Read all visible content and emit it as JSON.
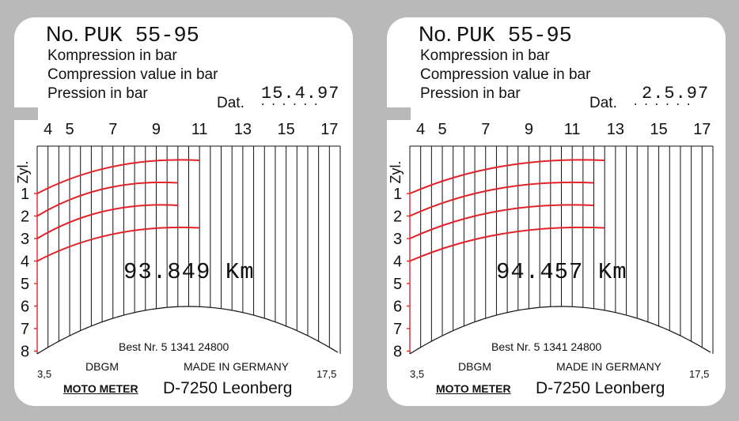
{
  "cards": [
    {
      "title_no": "No.",
      "title_code": "PUK 55-95",
      "lines": [
        "Kompression in bar",
        "Compression value in bar",
        "Pression in bar"
      ],
      "dat_label": "Dat.",
      "dat_value": "15.4.97",
      "dat_dots": "......",
      "scale_labels": [
        "4",
        "5",
        "7",
        "9",
        "11",
        "13",
        "15",
        "17"
      ],
      "zyl_label": "Zyl.",
      "cylinders": [
        "1",
        "2",
        "3",
        "4",
        "5",
        "6",
        "7",
        "8"
      ],
      "cylinder_max_bar": [
        11,
        10,
        10,
        11
      ],
      "odometer": "93.849 Km",
      "best_nr": "Best Nr. 5 1341 24800",
      "dbgm": "DBGM",
      "made_in": "MADE IN GERMANY",
      "brand": "MOTO METER",
      "city": "D-7250 Leonberg",
      "scale_min": "3,5",
      "scale_max": "17,5"
    },
    {
      "title_no": "No.",
      "title_code": "PUK 55-95",
      "lines": [
        "Kompression in bar",
        "Compression value in bar",
        "Pression in bar"
      ],
      "dat_label": "Dat.",
      "dat_value": "2.5.97",
      "dat_dots": "......",
      "scale_labels": [
        "4",
        "5",
        "7",
        "9",
        "11",
        "13",
        "15",
        "17"
      ],
      "zyl_label": "Zyl.",
      "cylinders": [
        "1",
        "2",
        "3",
        "4",
        "5",
        "6",
        "7",
        "8"
      ],
      "cylinder_max_bar": [
        12.5,
        12,
        12,
        12.5
      ],
      "odometer": "94.457 Km",
      "best_nr": "Best Nr. 5 1341 24800",
      "dbgm": "DBGM",
      "made_in": "MADE IN GERMANY",
      "brand": "MOTO METER",
      "city": "D-7250 Leonberg",
      "scale_min": "3,5",
      "scale_max": "17,5"
    }
  ],
  "colors": {
    "background": "#b9b9ba",
    "card": "#ffffff",
    "trace": "#e0242a",
    "ink": "#111111"
  }
}
